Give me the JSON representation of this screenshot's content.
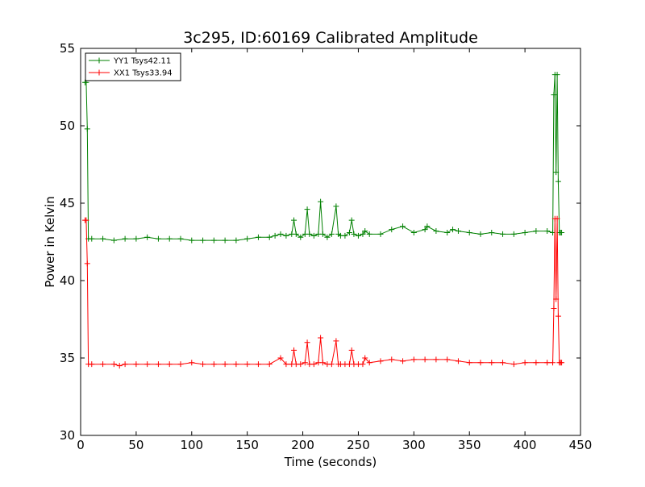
{
  "chart_data": {
    "type": "line",
    "title": "3c295, ID:60169 Calibrated Amplitude",
    "xlabel": "Time (seconds)",
    "ylabel": "Power in Kelvin",
    "xlim": [
      0,
      450
    ],
    "ylim": [
      30,
      55
    ],
    "xticks": [
      0,
      50,
      100,
      150,
      200,
      250,
      300,
      350,
      400,
      450
    ],
    "yticks": [
      30,
      35,
      40,
      45,
      50,
      55
    ],
    "grid": false,
    "legend_position": "top-left",
    "series": [
      {
        "name": "YY1 Tsys42.11",
        "color": "#008000",
        "marker": "+",
        "x": [
          4,
          5,
          6,
          7,
          10,
          20,
          30,
          40,
          50,
          60,
          70,
          80,
          90,
          100,
          110,
          120,
          130,
          140,
          150,
          160,
          170,
          175,
          180,
          185,
          190,
          192,
          194,
          198,
          202,
          204,
          206,
          210,
          214,
          216,
          218,
          222,
          226,
          230,
          232,
          234,
          238,
          242,
          244,
          246,
          250,
          254,
          256,
          260,
          270,
          280,
          290,
          300,
          310,
          312,
          320,
          330,
          335,
          340,
          350,
          360,
          370,
          380,
          390,
          400,
          410,
          420,
          425,
          426,
          427,
          428,
          429,
          430,
          431,
          432,
          433
        ],
        "y": [
          52.8,
          52.8,
          49.8,
          42.7,
          42.7,
          42.7,
          42.6,
          42.7,
          42.7,
          42.8,
          42.7,
          42.7,
          42.7,
          42.6,
          42.6,
          42.6,
          42.6,
          42.6,
          42.7,
          42.8,
          42.8,
          42.9,
          43.0,
          42.9,
          43.0,
          43.9,
          43.0,
          42.8,
          43.0,
          44.6,
          43.0,
          42.9,
          43.0,
          45.1,
          43.0,
          42.8,
          43.0,
          44.8,
          43.0,
          42.9,
          42.9,
          43.1,
          43.9,
          43.0,
          42.9,
          43.0,
          43.2,
          43.0,
          43.0,
          43.3,
          43.5,
          43.1,
          43.3,
          43.5,
          43.2,
          43.1,
          43.3,
          43.2,
          43.1,
          43.0,
          43.1,
          43.0,
          43.0,
          43.1,
          43.2,
          43.2,
          43.1,
          52.0,
          53.3,
          47.0,
          53.3,
          46.4,
          43.1,
          43.1,
          43.1
        ]
      },
      {
        "name": "XX1 Tsys33.94",
        "color": "#ff0000",
        "marker": "+",
        "x": [
          4,
          5,
          6,
          7,
          10,
          20,
          30,
          35,
          40,
          50,
          60,
          70,
          80,
          90,
          100,
          110,
          120,
          130,
          140,
          150,
          160,
          170,
          180,
          185,
          190,
          192,
          194,
          198,
          202,
          204,
          206,
          210,
          214,
          216,
          218,
          222,
          226,
          230,
          232,
          234,
          238,
          242,
          244,
          246,
          250,
          254,
          256,
          260,
          270,
          280,
          290,
          300,
          310,
          320,
          330,
          340,
          350,
          360,
          370,
          380,
          390,
          400,
          410,
          420,
          425,
          426,
          427,
          428,
          429,
          430,
          431,
          432,
          433
        ],
        "y": [
          43.9,
          43.9,
          41.1,
          34.6,
          34.6,
          34.6,
          34.6,
          34.5,
          34.6,
          34.6,
          34.6,
          34.6,
          34.6,
          34.6,
          34.7,
          34.6,
          34.6,
          34.6,
          34.6,
          34.6,
          34.6,
          34.6,
          35.0,
          34.6,
          34.6,
          35.5,
          34.6,
          34.6,
          34.7,
          36.0,
          34.6,
          34.6,
          34.7,
          36.3,
          34.7,
          34.6,
          34.6,
          36.1,
          34.6,
          34.6,
          34.6,
          34.6,
          35.5,
          34.6,
          34.6,
          34.6,
          35.0,
          34.7,
          34.8,
          34.9,
          34.8,
          34.9,
          34.9,
          34.9,
          34.9,
          34.8,
          34.7,
          34.7,
          34.7,
          34.7,
          34.6,
          34.7,
          34.7,
          34.7,
          34.7,
          38.2,
          44.0,
          38.8,
          44.0,
          37.7,
          34.7,
          34.7,
          34.7
        ]
      }
    ]
  }
}
